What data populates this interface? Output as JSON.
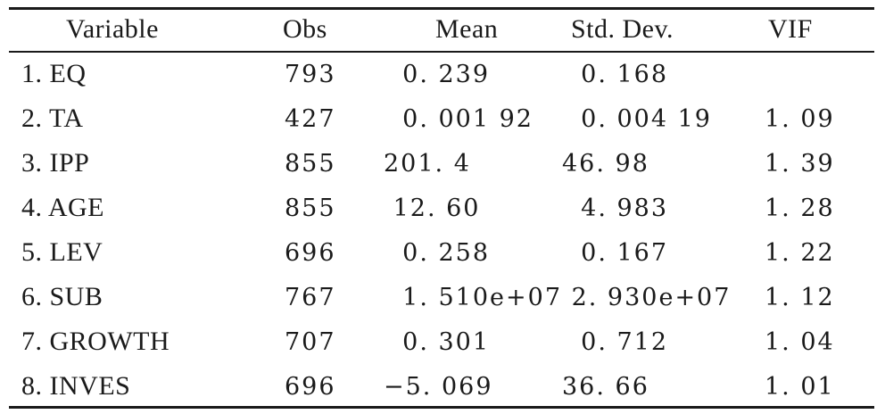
{
  "table": {
    "headers": [
      "Variable",
      "Obs",
      "Mean",
      "Std. Dev.",
      "VIF"
    ],
    "rows": [
      {
        "variable": "1. EQ",
        "obs": "793",
        "mean": "  0. 239",
        "sd": "  0. 168",
        "vif": ""
      },
      {
        "variable": "2. TA",
        "obs": "427",
        "mean": "  0. 001 92",
        "sd": "  0. 004 19",
        "vif": "1. 09"
      },
      {
        "variable": "3. IPP",
        "obs": "855",
        "mean": "201. 4",
        "sd": "46. 98",
        "vif": "1. 39"
      },
      {
        "variable": "4. AGE",
        "obs": "855",
        "mean": " 12. 60",
        "sd": "  4. 983",
        "vif": "1. 28"
      },
      {
        "variable": "5. LEV",
        "obs": "696",
        "mean": "  0. 258",
        "sd": "  0. 167",
        "vif": "1. 22"
      },
      {
        "variable": "6. SUB",
        "obs": "767",
        "mean": "  1. 510e+07",
        "sd": " 2. 930e+07",
        "vif": "1. 12"
      },
      {
        "variable": "7. GROWTH",
        "obs": "707",
        "mean": "  0. 301",
        "sd": "  0. 712",
        "vif": "1. 04"
      },
      {
        "variable": "8. INVES",
        "obs": "696",
        "mean": "−5. 069",
        "sd": "36. 66",
        "vif": "1. 01"
      }
    ]
  }
}
